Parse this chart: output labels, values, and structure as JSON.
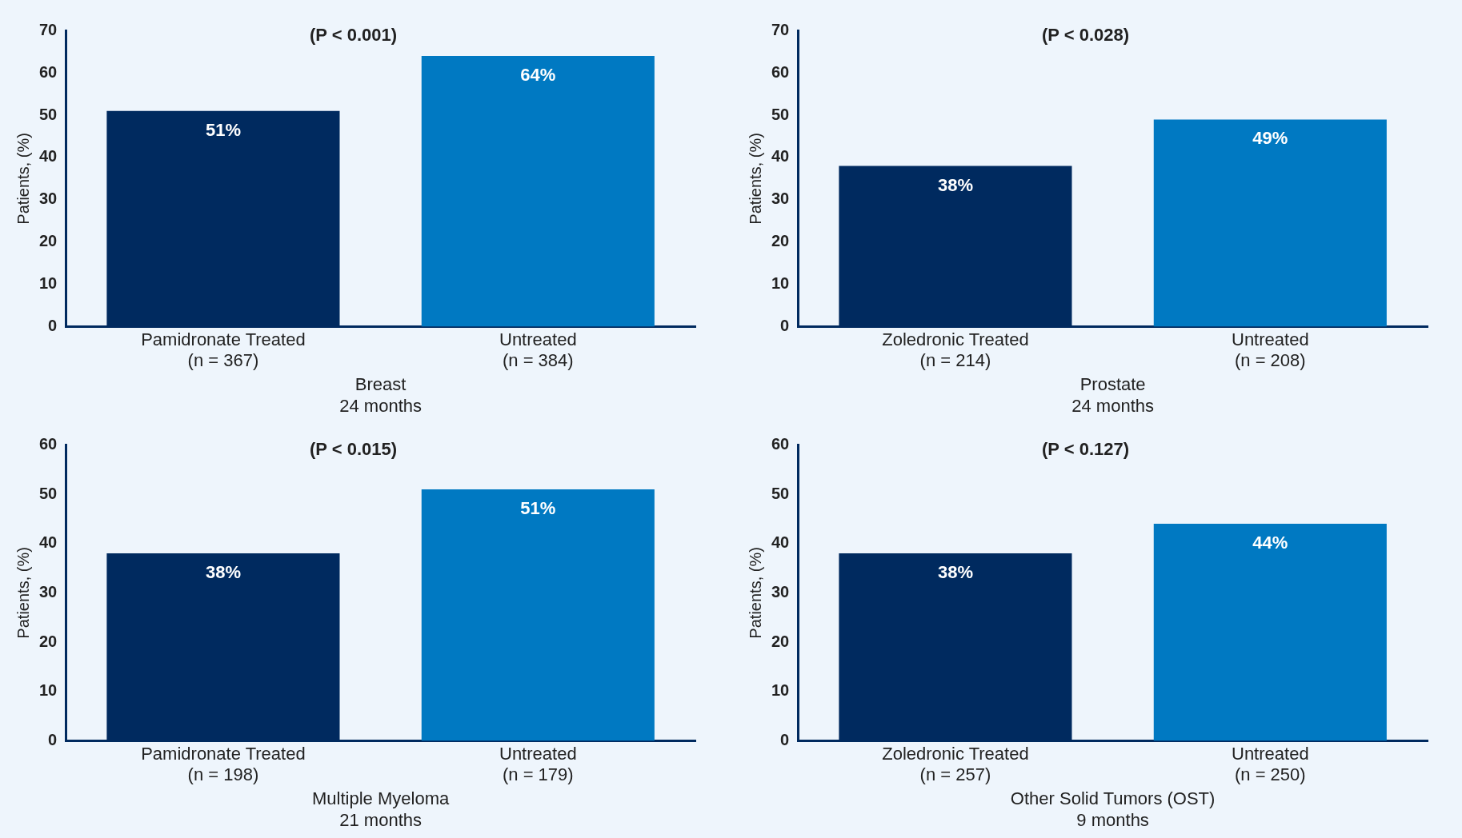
{
  "chart_data": [
    {
      "type": "bar",
      "title": "(P < 0.001)",
      "categories": [
        "Pamidronate Treated\n(n = 367)",
        "Untreated\n(n = 384)"
      ],
      "values": [
        51,
        64
      ],
      "colors": [
        "#002a5f",
        "#0079c2"
      ],
      "value_labels": [
        "51%",
        "64%"
      ],
      "ylabel": "Patients, (%)",
      "xlabel": "Breast\n24 months",
      "ylim": [
        0,
        70
      ],
      "yticks": [
        0,
        10,
        20,
        30,
        40,
        50,
        60,
        70
      ],
      "grid": false,
      "legend": false
    },
    {
      "type": "bar",
      "title": "(P < 0.028)",
      "categories": [
        "Zoledronic Treated\n(n = 214)",
        "Untreated\n(n = 208)"
      ],
      "values": [
        38,
        49
      ],
      "colors": [
        "#002a5f",
        "#0079c2"
      ],
      "value_labels": [
        "38%",
        "49%"
      ],
      "ylabel": "Patients, (%)",
      "xlabel": "Prostate\n24 months",
      "ylim": [
        0,
        70
      ],
      "yticks": [
        0,
        10,
        20,
        30,
        40,
        50,
        60,
        70
      ],
      "grid": false,
      "legend": false
    },
    {
      "type": "bar",
      "title": "(P < 0.015)",
      "categories": [
        "Pamidronate Treated\n(n = 198)",
        "Untreated\n(n = 179)"
      ],
      "values": [
        38,
        51
      ],
      "colors": [
        "#002a5f",
        "#0079c2"
      ],
      "value_labels": [
        "38%",
        "51%"
      ],
      "ylabel": "Patients, (%)",
      "xlabel": "Multiple Myeloma\n21 months",
      "ylim": [
        0,
        60
      ],
      "yticks": [
        0,
        10,
        20,
        30,
        40,
        50,
        60
      ],
      "grid": false,
      "legend": false
    },
    {
      "type": "bar",
      "title": "(P < 0.127)",
      "categories": [
        "Zoledronic Treated\n(n = 257)",
        "Untreated\n(n = 250)"
      ],
      "values": [
        38,
        44
      ],
      "colors": [
        "#002a5f",
        "#0079c2"
      ],
      "value_labels": [
        "38%",
        "44%"
      ],
      "ylabel": "Patients, (%)",
      "xlabel": "Other Solid Tumors (OST)\n9 months",
      "ylim": [
        0,
        60
      ],
      "yticks": [
        0,
        10,
        20,
        30,
        40,
        50,
        60
      ],
      "grid": false,
      "legend": false
    }
  ]
}
